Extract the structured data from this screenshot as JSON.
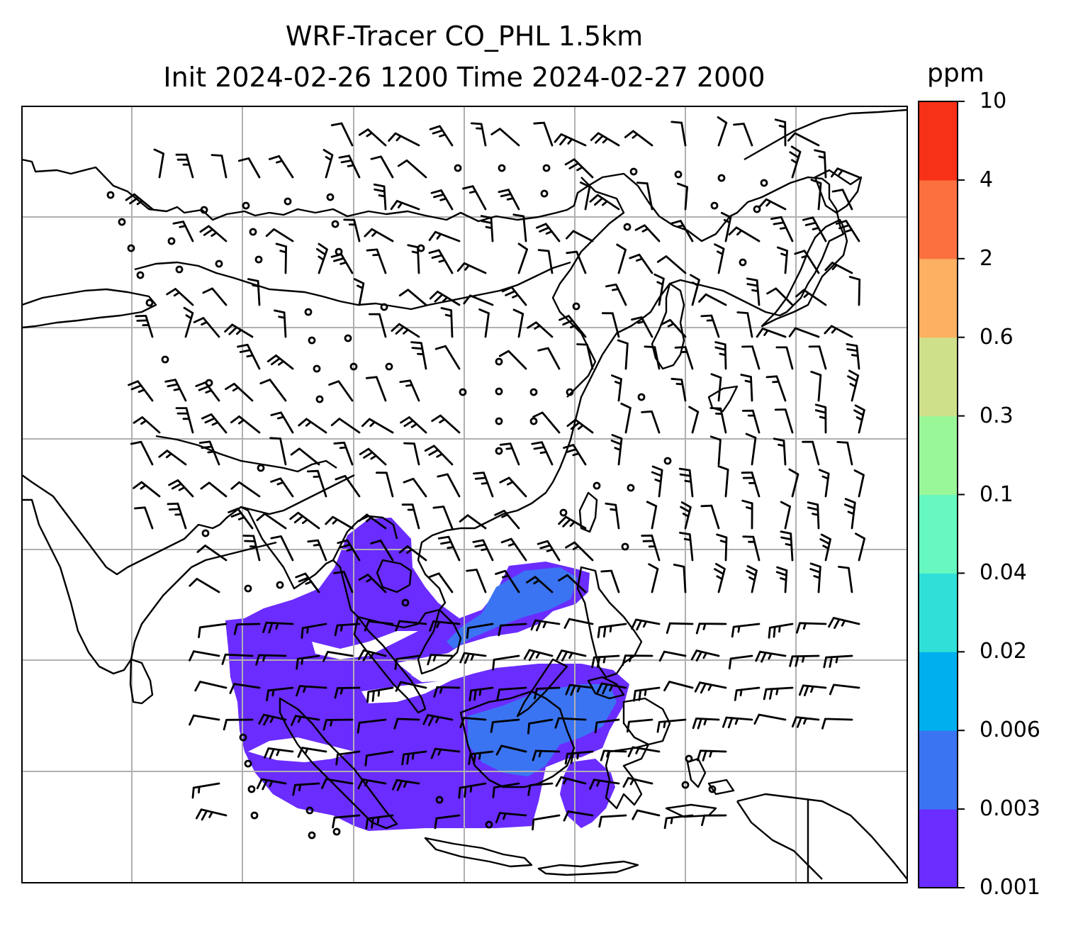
{
  "title_line1": "WRF-Tracer CO_PHL 1.5km",
  "title_line2": "Init 2024-02-26 1200 Time 2024-02-27 2000",
  "colorbar": {
    "unit": "ppm",
    "levels": [
      "0.001",
      "0.003",
      "0.006",
      "0.02",
      "0.04",
      "0.1",
      "0.3",
      "0.6",
      "2",
      "4",
      "10"
    ],
    "colors": [
      "#6a2cff",
      "#3a74f2",
      "#00b0ee",
      "#30e0d8",
      "#66f8c0",
      "#9af798",
      "#cfe08a",
      "#fdb062",
      "#fc7040",
      "#f73018"
    ]
  },
  "map_style": {
    "gridline_color": "#b0b0b0",
    "coastline_color": "#000000",
    "plume_color": "#6a2cff",
    "plume_high_color": "#3a74f2",
    "barb_color": "#000000"
  }
}
